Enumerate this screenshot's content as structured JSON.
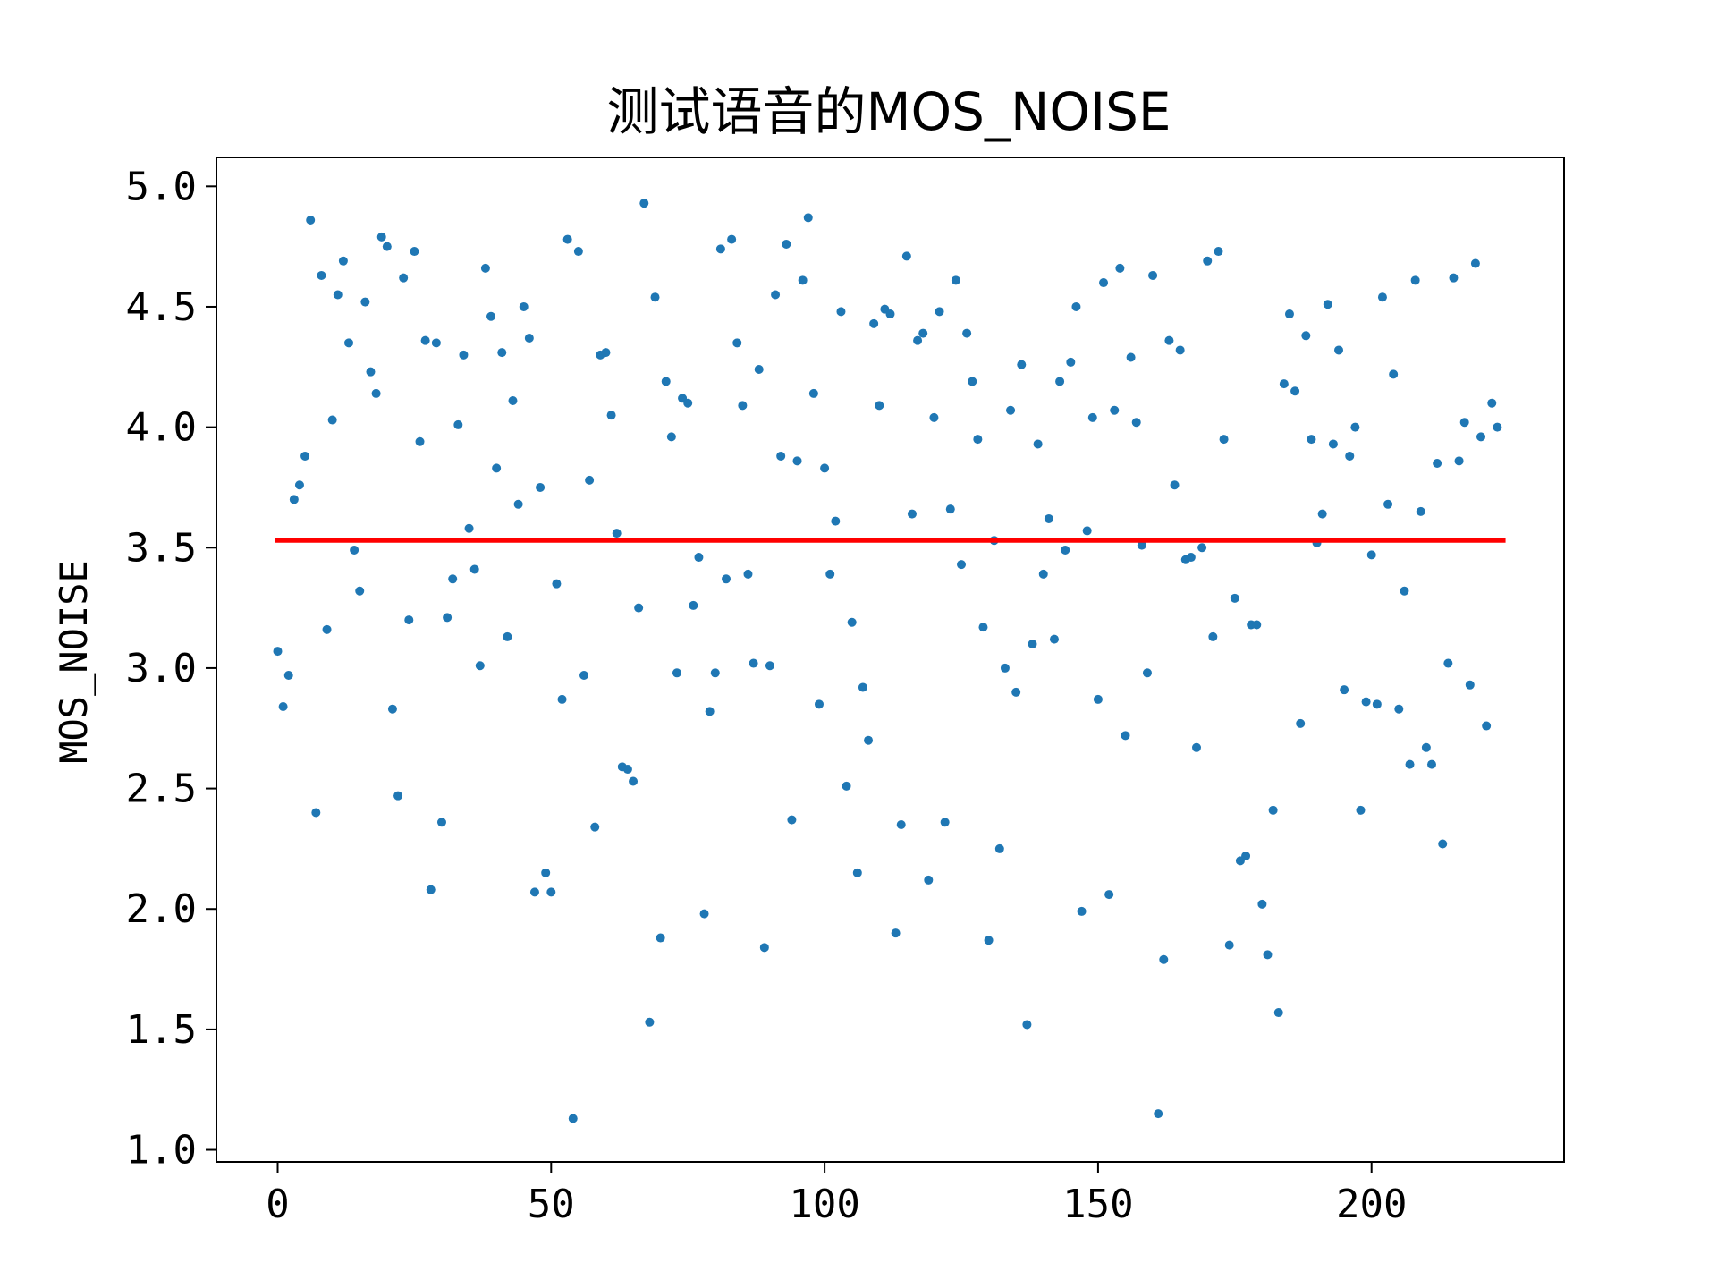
{
  "chart_data": {
    "type": "scatter",
    "title": "测试语音的MOS_NOISE",
    "xlabel": "",
    "ylabel": "MOS_NOISE",
    "xlim": [
      -11.2,
      235.2
    ],
    "ylim": [
      0.95,
      5.12
    ],
    "xticks": [
      0,
      50,
      100,
      150,
      200
    ],
    "yticks": [
      1.0,
      1.5,
      2.0,
      2.5,
      3.0,
      3.5,
      4.0,
      4.5,
      5.0
    ],
    "ytick_labels": [
      "1.0",
      "1.5",
      "2.0",
      "2.5",
      "3.0",
      "3.5",
      "4.0",
      "4.5",
      "5.0"
    ],
    "grid": false,
    "legend": "none",
    "point_color": "#1f77b4",
    "mean_line": {
      "y": 3.53,
      "x_range": [
        -0.5,
        224.5
      ],
      "color": "#ff0000"
    },
    "series": [
      {
        "values": [
          3.07,
          2.84,
          2.97,
          3.7,
          3.76,
          3.88,
          4.86,
          2.4,
          4.63,
          3.16,
          4.03,
          4.55,
          4.69,
          4.35,
          3.49,
          3.32,
          4.52,
          4.23,
          4.14,
          4.79,
          4.75,
          2.83,
          2.47,
          4.62,
          3.2,
          4.73,
          3.94,
          4.36,
          2.08,
          4.35,
          2.36,
          3.21,
          3.37,
          4.01,
          4.3,
          3.58,
          3.41,
          3.01,
          4.66,
          4.46,
          3.83,
          4.31,
          3.13,
          4.11,
          3.68,
          4.5,
          4.37,
          2.07,
          3.75,
          2.15,
          2.07,
          3.35,
          2.87,
          4.78,
          1.13,
          4.73,
          2.97,
          3.78,
          2.34,
          4.3,
          4.31,
          4.05,
          3.56,
          2.59,
          2.58,
          2.53,
          3.25,
          4.93,
          1.53,
          4.54,
          1.88,
          4.19,
          3.96,
          2.98,
          4.12,
          4.1,
          3.26,
          3.46,
          1.98,
          2.82,
          2.98,
          4.74,
          3.37,
          4.78,
          4.35,
          4.09,
          3.39,
          3.02,
          4.24,
          1.84,
          3.01,
          4.55,
          3.88,
          4.76,
          2.37,
          3.86,
          4.61,
          4.87,
          4.14,
          2.85,
          3.83,
          3.39,
          3.61,
          4.48,
          2.51,
          3.19,
          2.15,
          2.92,
          2.7,
          4.43,
          4.09,
          4.49,
          4.47,
          1.9,
          2.35,
          4.71,
          3.64,
          4.36,
          4.39,
          2.12,
          4.04,
          4.48,
          2.36,
          3.66,
          4.61,
          3.43,
          4.39,
          4.19,
          3.95,
          3.17,
          1.87,
          3.53,
          2.25,
          3.0,
          4.07,
          2.9,
          4.26,
          1.52,
          3.1,
          3.93,
          3.39,
          3.62,
          3.12,
          4.19,
          3.49,
          4.27,
          4.5,
          1.99,
          3.57,
          4.04,
          2.87,
          4.6,
          2.06,
          4.07,
          4.66,
          2.72,
          4.29,
          4.02,
          3.51,
          2.98,
          4.63,
          1.15,
          1.79,
          4.36,
          3.76,
          4.32,
          3.45,
          3.46,
          2.67,
          3.5,
          4.69,
          3.13,
          4.73,
          3.95,
          1.85,
          3.29,
          2.2,
          2.22,
          3.18,
          3.18,
          2.02,
          1.81,
          2.41,
          1.57,
          4.18,
          4.47,
          4.15,
          2.77,
          4.38,
          3.95,
          3.52,
          3.64,
          4.51,
          3.93,
          4.32,
          2.91,
          3.88,
          4.0,
          2.41,
          2.86,
          3.47,
          2.85,
          4.54,
          3.68,
          4.22,
          2.83,
          3.32,
          2.6,
          4.61,
          3.65,
          2.67,
          2.6,
          3.85,
          2.27,
          3.02,
          4.62,
          3.86,
          4.02,
          2.93,
          4.68,
          3.96,
          2.76,
          4.1,
          4.0
        ]
      }
    ]
  }
}
